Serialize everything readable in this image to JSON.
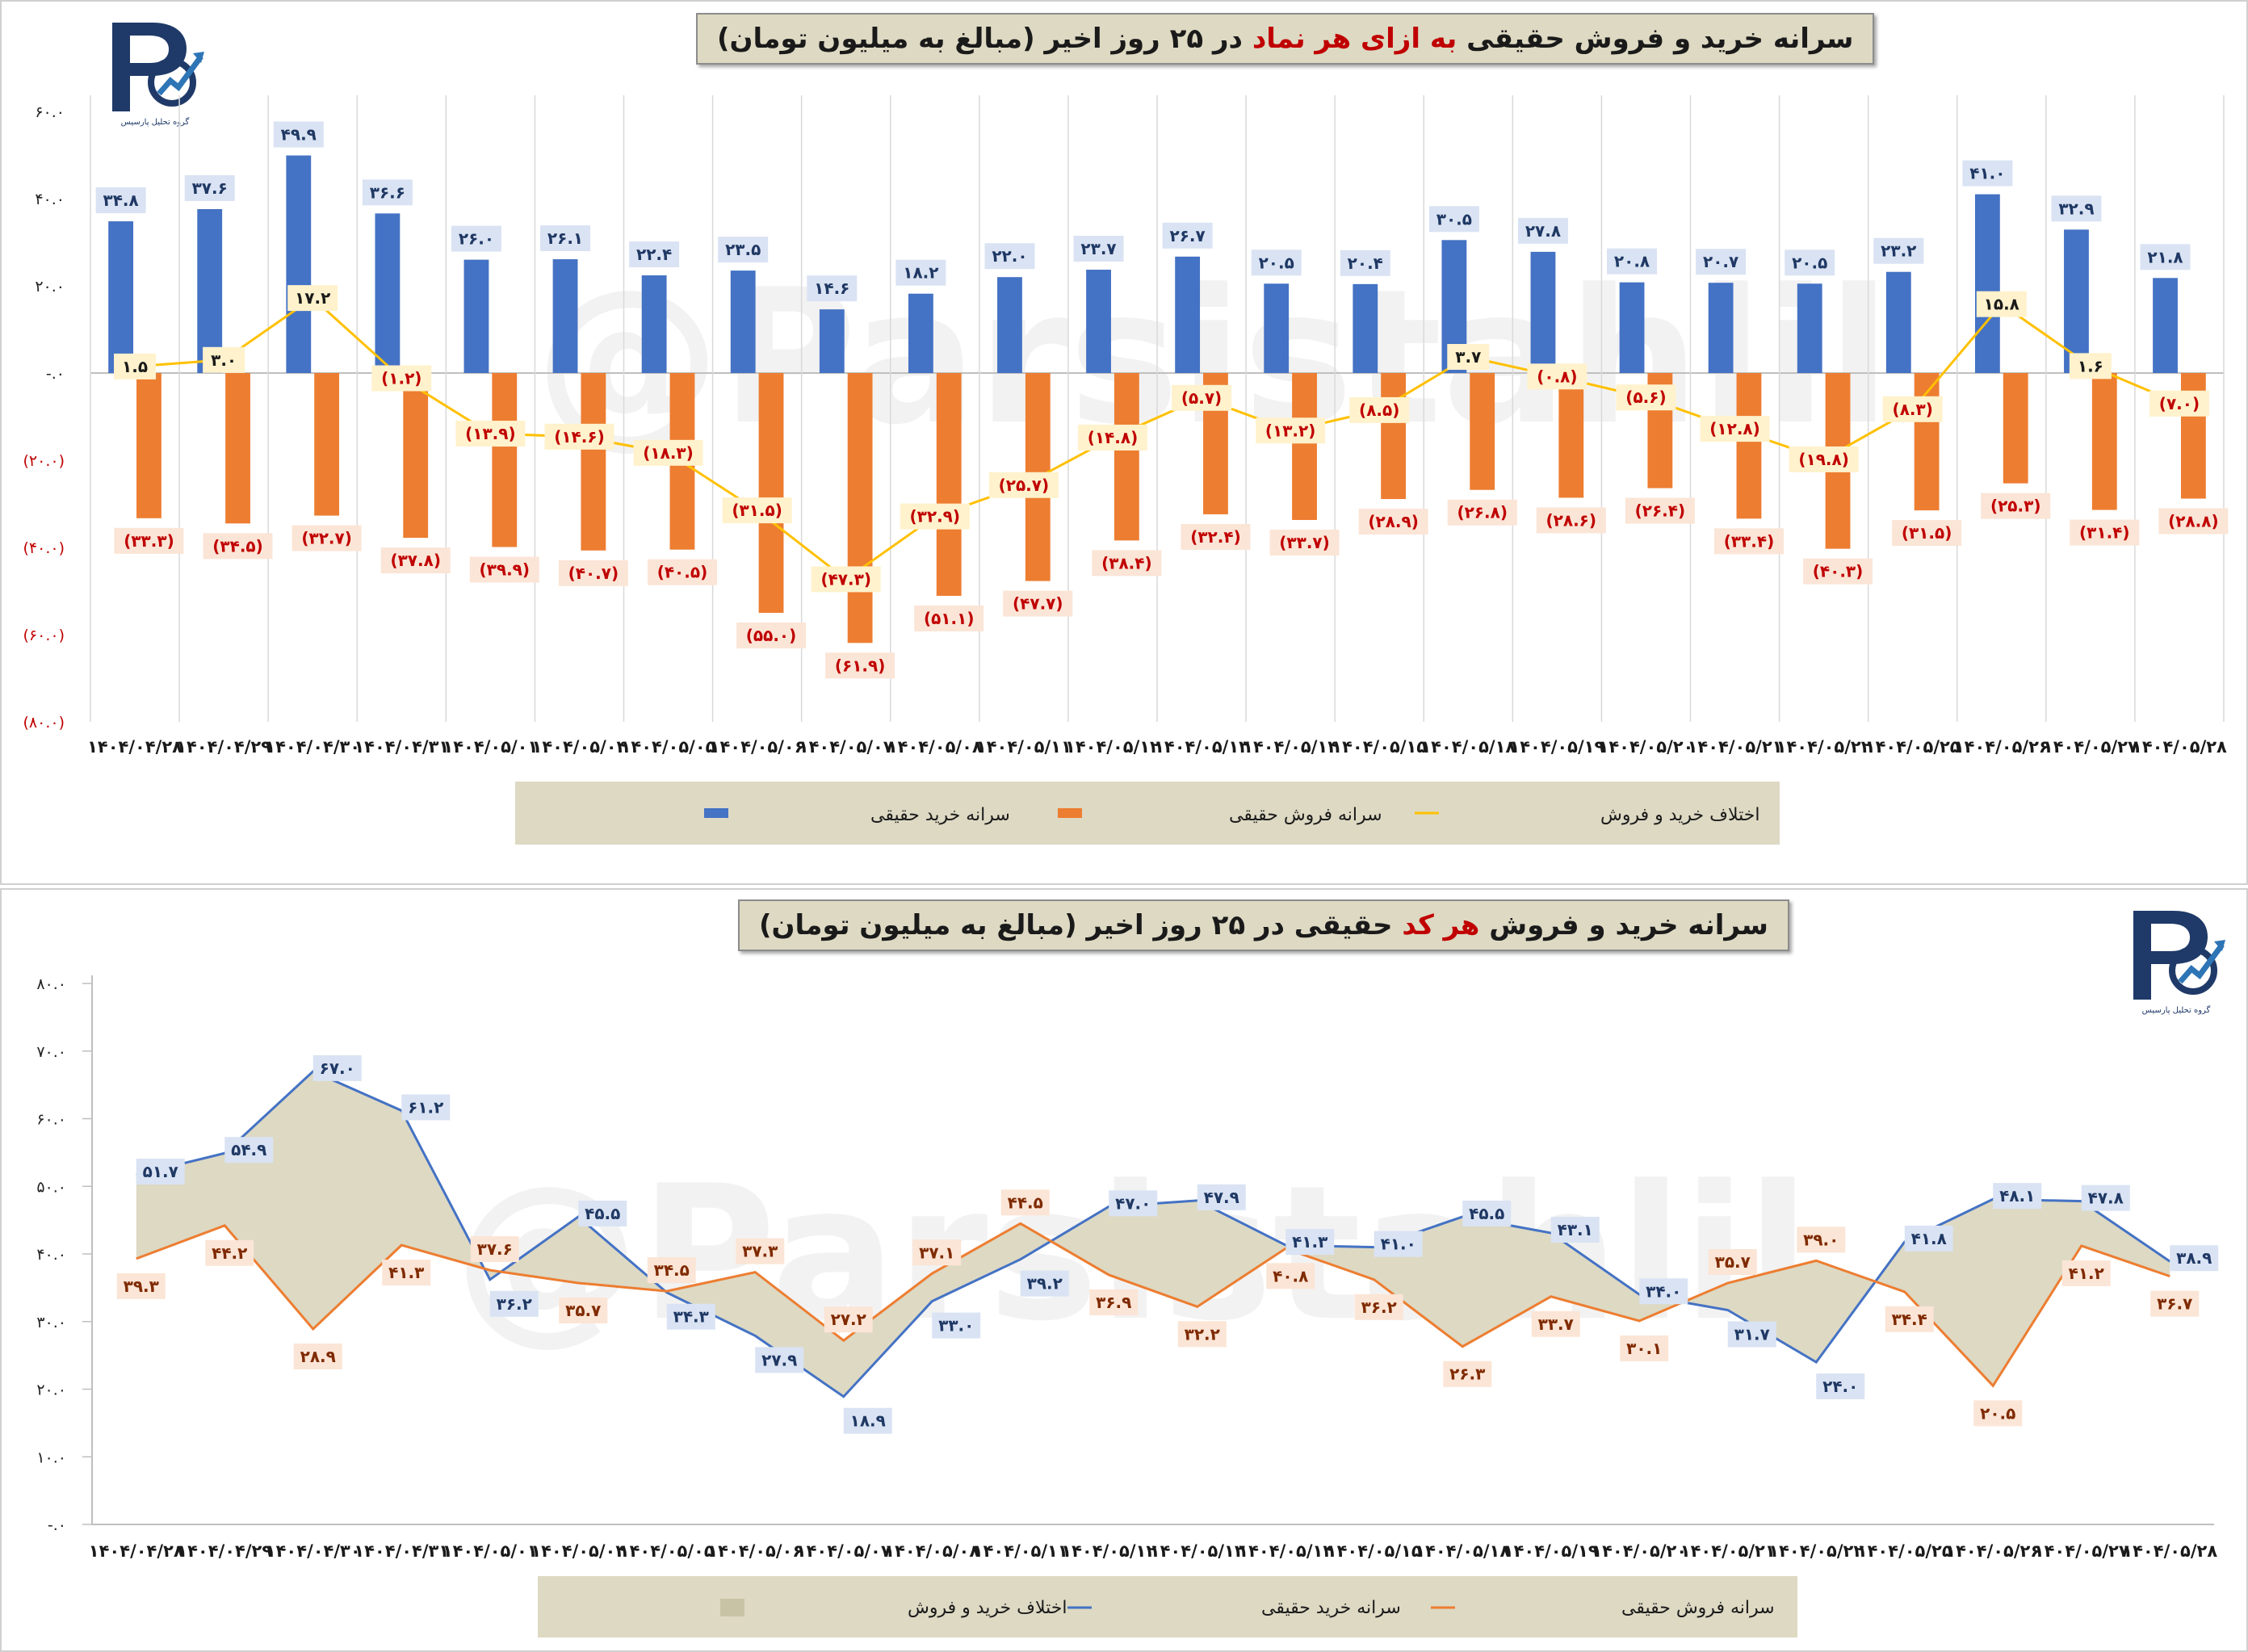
{
  "chart1": {
    "title_pre": "سرانه خرید و فروش حقیقی ",
    "title_hl": "به ازای هر نماد",
    "title_post": " در ۲۵ روز اخیر (مبالغ به میلیون تومان)",
    "watermark": "@Parsistahlil",
    "logo_text": "گروه تحلیل پارسیس",
    "y_ticks": [
      "۶۰.۰",
      "۴۰.۰",
      "۲۰.۰",
      "-.۰",
      "(۲۰.۰)",
      "(۴۰.۰)",
      "(۶۰.۰)",
      "(۸۰.۰)"
    ],
    "legend": {
      "buy": "سرانه خرید حقیقی",
      "sell": "سرانه فروش حقیقی",
      "diff": "اختلاف خرید و فروش"
    },
    "colors": {
      "buy": "#4472c4",
      "sell": "#ed7d31",
      "diff": "#ffc000",
      "legend_bg": "#ddd9c3"
    }
  },
  "chart2": {
    "title_pre": "سرانه خرید و فروش ",
    "title_hl": "هر کد",
    "title_post": " حقیقی در ۲۵ روز اخیر (مبالغ به میلیون تومان)",
    "watermark": "@Parsistahlil",
    "logo_text": "گروه تحلیل پارسیس",
    "y_ticks": [
      "۸۰.۰",
      "۷۰.۰",
      "۶۰.۰",
      "۵۰.۰",
      "۴۰.۰",
      "۳۰.۰",
      "۲۰.۰",
      "۱۰.۰",
      "-.۰"
    ],
    "legend": {
      "diff": "اختلاف خرید و فروش",
      "buy": "سرانه خرید حقیقی",
      "sell": "سرانه فروش حقیقی"
    },
    "colors": {
      "buy": "#4472c4",
      "sell": "#ed7d31",
      "area": "#ddd9c3"
    }
  },
  "chart_data": [
    {
      "type": "bar",
      "title": "سرانه خرید و فروش حقیقی به ازای هر نماد در ۲۵ روز اخیر (مبالغ به میلیون تومان)",
      "ylim": [
        -80,
        60
      ],
      "categories": [
        "۱۴۰۴/۰۴/۲۸",
        "۱۴۰۴/۰۴/۲۹",
        "۱۴۰۴/۰۴/۳۰",
        "۱۴۰۴/۰۴/۳۱",
        "۱۴۰۴/۰۵/۰۱",
        "۱۴۰۴/۰۵/۰۴",
        "۱۴۰۴/۰۵/۰۵",
        "۱۴۰۴/۰۵/۰۶",
        "۱۴۰۴/۰۵/۰۷",
        "۱۴۰۴/۰۵/۰۸",
        "۱۴۰۴/۰۵/۱۱",
        "۱۴۰۴/۰۵/۱۲",
        "۱۴۰۴/۰۵/۱۳",
        "۱۴۰۴/۰۵/۱۴",
        "۱۴۰۴/۰۵/۱۵",
        "۱۴۰۴/۰۵/۱۸",
        "۱۴۰۴/۰۵/۱۹",
        "۱۴۰۴/۰۵/۲۰",
        "۱۴۰۴/۰۵/۲۱",
        "۱۴۰۴/۰۵/۲۲",
        "۱۴۰۴/۰۵/۲۵",
        "۱۴۰۴/۰۵/۲۶",
        "۱۴۰۴/۰۵/۲۷",
        "۱۴۰۴/۰۵/۲۸"
      ],
      "series": [
        {
          "name": "سرانه خرید حقیقی",
          "kind": "bar",
          "values": [
            34.8,
            37.6,
            49.9,
            36.6,
            26.0,
            26.1,
            22.4,
            23.5,
            14.6,
            18.2,
            22.0,
            23.7,
            26.7,
            20.5,
            20.4,
            30.5,
            27.8,
            20.8,
            20.7,
            20.5,
            23.2,
            41.0,
            32.9,
            21.8
          ],
          "labels": [
            "۳۴.۸",
            "۳۷.۶",
            "۴۹.۹",
            "۳۶.۶",
            "۲۶.۰",
            "۲۶.۱",
            "۲۲.۴",
            "۲۳.۵",
            "۱۴.۶",
            "۱۸.۲",
            "۲۲.۰",
            "۲۳.۷",
            "۲۶.۷",
            "۲۰.۵",
            "۲۰.۴",
            "۳۰.۵",
            "۲۷.۸",
            "۲۰.۸",
            "۲۰.۷",
            "۲۰.۵",
            "۲۳.۲",
            "۴۱.۰",
            "۳۲.۹",
            "۲۱.۸"
          ]
        },
        {
          "name": "سرانه فروش حقیقی",
          "kind": "bar",
          "values": [
            -33.3,
            -34.5,
            -32.7,
            -37.8,
            -39.9,
            -40.7,
            -40.5,
            -55.0,
            -61.9,
            -51.1,
            -47.7,
            -38.4,
            -32.4,
            -33.7,
            -28.9,
            -26.8,
            -28.6,
            -26.4,
            -33.4,
            -40.3,
            -31.5,
            -25.3,
            -31.4,
            -28.8
          ],
          "labels": [
            "(۳۳.۳)",
            "(۳۴.۵)",
            "(۳۲.۷)",
            "(۳۷.۸)",
            "(۳۹.۹)",
            "(۴۰.۷)",
            "(۴۰.۵)",
            "(۵۵.۰)",
            "(۶۱.۹)",
            "(۵۱.۱)",
            "(۴۷.۷)",
            "(۳۸.۴)",
            "(۳۲.۴)",
            "(۳۳.۷)",
            "(۲۸.۹)",
            "(۲۶.۸)",
            "(۲۸.۶)",
            "(۲۶.۴)",
            "(۳۳.۴)",
            "(۴۰.۳)",
            "(۳۱.۵)",
            "(۲۵.۳)",
            "(۳۱.۴)",
            "(۲۸.۸)"
          ]
        },
        {
          "name": "اختلاف خرید و فروش",
          "kind": "line",
          "values": [
            1.5,
            3.0,
            17.2,
            -1.2,
            -13.9,
            -14.6,
            -18.3,
            -31.5,
            -47.3,
            -32.9,
            -25.7,
            -14.8,
            -5.7,
            -13.2,
            -8.5,
            3.7,
            -0.8,
            -5.6,
            -12.8,
            -19.8,
            -8.3,
            15.8,
            1.6,
            -7.0
          ],
          "labels": [
            "۱.۵",
            "۳.۰",
            "۱۷.۲",
            "(۱.۲)",
            "(۱۳.۹)",
            "(۱۴.۶)",
            "(۱۸.۳)",
            "(۳۱.۵)",
            "(۴۷.۳)",
            "(۳۲.۹)",
            "(۲۵.۷)",
            "(۱۴.۸)",
            "(۵.۷)",
            "(۱۳.۲)",
            "(۸.۵)",
            "۳.۷",
            "(۰.۸)",
            "(۵.۶)",
            "(۱۲.۸)",
            "(۱۹.۸)",
            "(۸.۳)",
            "۱۵.۸",
            "۱.۶",
            "(۷.۰)"
          ]
        }
      ],
      "legend_position": "bottom"
    },
    {
      "type": "area",
      "title": "سرانه خرید و فروش هر کد حقیقی در ۲۵ روز اخیر (مبالغ به میلیون تومان)",
      "ylim": [
        0,
        80
      ],
      "categories": [
        "۱۴۰۴/۰۴/۲۸",
        "۱۴۰۴/۰۴/۲۹",
        "۱۴۰۴/۰۴/۳۰",
        "۱۴۰۴/۰۴/۳۱",
        "۱۴۰۴/۰۵/۰۱",
        "۱۴۰۴/۰۵/۰۴",
        "۱۴۰۴/۰۵/۰۵",
        "۱۴۰۴/۰۵/۰۶",
        "۱۴۰۴/۰۵/۰۷",
        "۱۴۰۴/۰۵/۰۸",
        "۱۴۰۴/۰۵/۱۱",
        "۱۴۰۴/۰۵/۱۲",
        "۱۴۰۴/۰۵/۱۳",
        "۱۴۰۴/۰۵/۱۴",
        "۱۴۰۴/۰۵/۱۵",
        "۱۴۰۴/۰۵/۱۸",
        "۱۴۰۴/۰۵/۱۹",
        "۱۴۰۴/۰۵/۲۰",
        "۱۴۰۴/۰۵/۲۱",
        "۱۴۰۴/۰۵/۲۲",
        "۱۴۰۴/۰۵/۲۵",
        "۱۴۰۴/۰۵/۲۶",
        "۱۴۰۴/۰۵/۲۷",
        "۱۴۰۴/۰۵/۲۸"
      ],
      "series": [
        {
          "name": "سرانه خرید حقیقی",
          "values": [
            51.7,
            54.9,
            67.0,
            61.2,
            36.2,
            45.5,
            34.3,
            27.9,
            18.9,
            33.0,
            39.2,
            47.0,
            47.9,
            41.3,
            41.0,
            45.5,
            43.1,
            34.0,
            31.7,
            24.0,
            41.8,
            48.1,
            47.8,
            38.9
          ],
          "labels": [
            "۵۱.۷",
            "۵۴.۹",
            "۶۷.۰",
            "۶۱.۲",
            "۳۶.۲",
            "۴۵.۵",
            "۳۴.۳",
            "۲۷.۹",
            "۱۸.۹",
            "۳۳.۰",
            "۳۹.۲",
            "۴۷.۰",
            "۴۷.۹",
            "۴۱.۳",
            "۴۱.۰",
            "۴۵.۵",
            "۴۳.۱",
            "۳۴.۰",
            "۳۱.۷",
            "۲۴.۰",
            "۴۱.۸",
            "۴۸.۱",
            "۴۷.۸",
            "۳۸.۹"
          ]
        },
        {
          "name": "سرانه فروش حقیقی",
          "values": [
            39.3,
            44.2,
            28.9,
            41.3,
            37.6,
            35.7,
            34.5,
            37.3,
            27.2,
            37.1,
            44.5,
            36.9,
            32.2,
            40.8,
            36.2,
            26.3,
            33.7,
            30.1,
            35.7,
            39.0,
            34.4,
            20.5,
            41.2,
            36.7
          ],
          "labels": [
            "۳۹.۳",
            "۴۴.۲",
            "۲۸.۹",
            "۴۱.۳",
            "۳۷.۶",
            "۳۵.۷",
            "۳۴.۵",
            "۳۷.۳",
            "۲۷.۲",
            "۳۷.۱",
            "۴۴.۵",
            "۳۶.۹",
            "۳۲.۲",
            "۴۰.۸",
            "۳۶.۲",
            "۲۶.۳",
            "۳۳.۷",
            "۳۰.۱",
            "۳۵.۷",
            "۳۹.۰",
            "۳۴.۴",
            "۲۰.۵",
            "۴۱.۲",
            "۳۶.۷"
          ]
        }
      ],
      "legend_position": "bottom"
    }
  ]
}
